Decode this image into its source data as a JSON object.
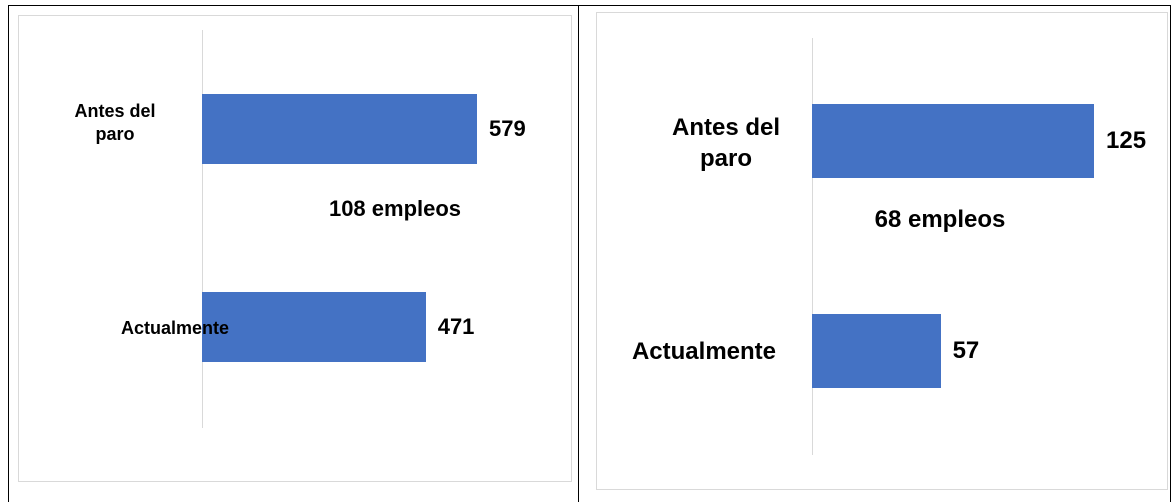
{
  "chart_data": [
    {
      "type": "bar",
      "orientation": "horizontal",
      "categories": [
        "Antes del paro",
        "Actualmente"
      ],
      "values": [
        579,
        471
      ],
      "color": "#4472c4",
      "annotation": "108 empleos"
    },
    {
      "type": "bar",
      "orientation": "horizontal",
      "categories": [
        "Antes del paro",
        "Actualmente"
      ],
      "values": [
        125,
        57
      ],
      "color": "#4472c4",
      "annotation": "68 empleos"
    }
  ]
}
